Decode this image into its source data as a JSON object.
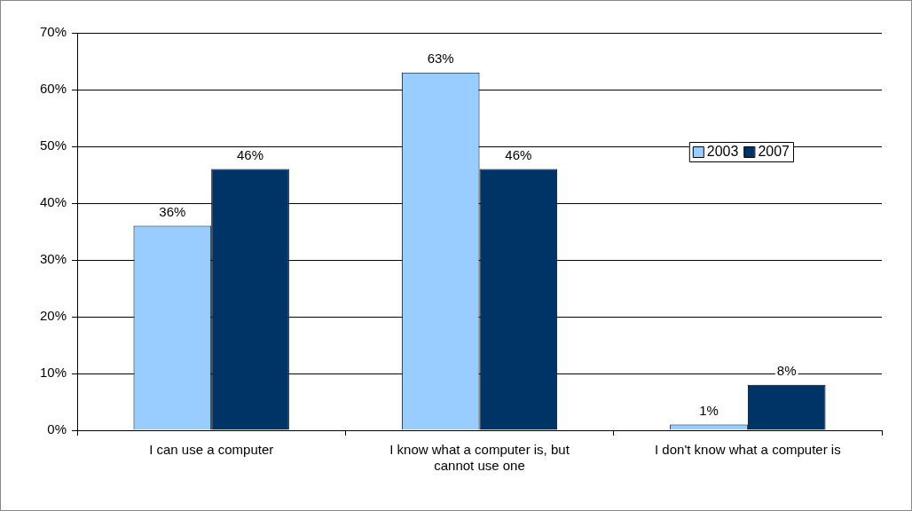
{
  "chart_data": {
    "type": "bar",
    "categories": [
      "I can use a computer",
      "I know what a computer is, but cannot use one",
      "I don't know what a computer is"
    ],
    "series": [
      {
        "name": "2003",
        "color": "#99ccff",
        "values": [
          36,
          63,
          1
        ],
        "value_labels": [
          "36%",
          "63%",
          "1%"
        ]
      },
      {
        "name": "2007",
        "color": "#003366",
        "values": [
          46,
          46,
          8
        ],
        "value_labels": [
          "46%",
          "46%",
          "8%"
        ]
      }
    ],
    "ylim": [
      0,
      70
    ],
    "yticks": [
      {
        "value": 0,
        "label": "0%"
      },
      {
        "value": 10,
        "label": "10%"
      },
      {
        "value": 20,
        "label": "20%"
      },
      {
        "value": 30,
        "label": "30%"
      },
      {
        "value": 40,
        "label": "40%"
      },
      {
        "value": 50,
        "label": "50%"
      },
      {
        "value": 60,
        "label": "60%"
      },
      {
        "value": 70,
        "label": "70%"
      }
    ],
    "grid": "y",
    "legend": "right"
  }
}
